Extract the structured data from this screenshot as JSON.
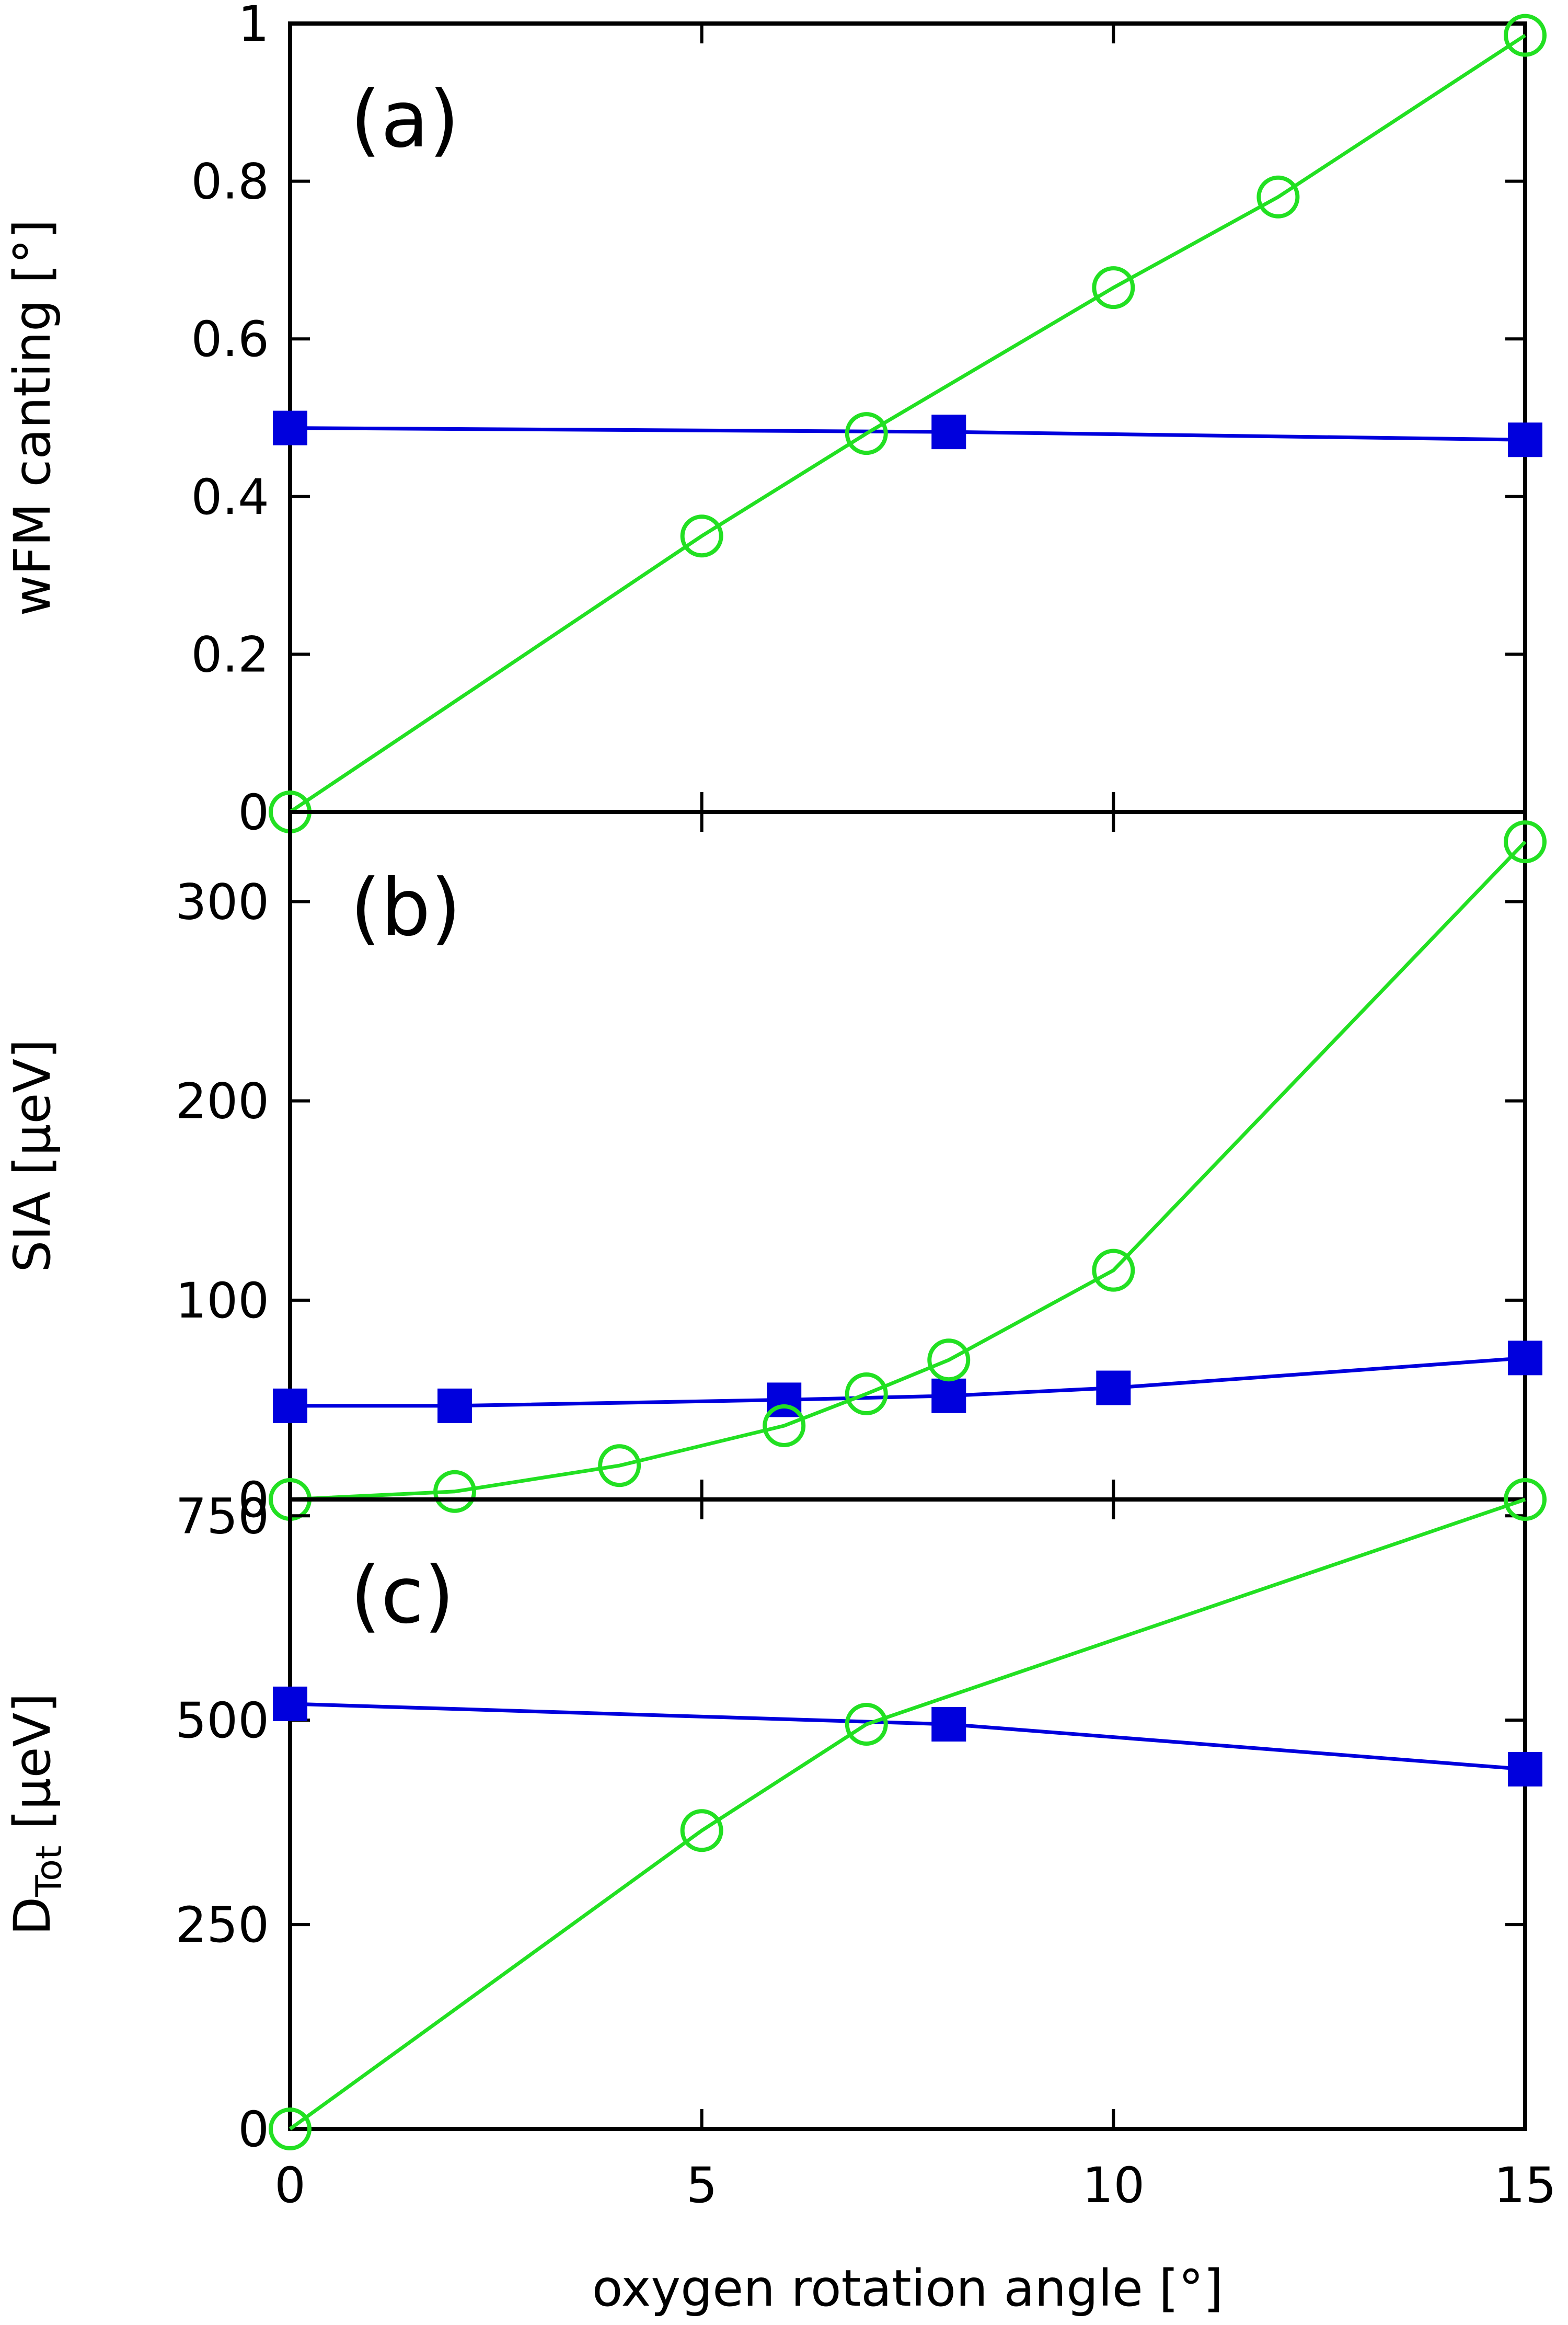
{
  "chart_data": [
    {
      "type": "line",
      "panel_label": "(a)",
      "ylabel": "wFM canting [°]",
      "ylim": [
        0,
        1
      ],
      "yticks": [
        {
          "value": 0,
          "label": "0"
        },
        {
          "value": 0.2,
          "label": "0.2"
        },
        {
          "value": 0.4,
          "label": "0.4"
        },
        {
          "value": 0.6,
          "label": "0.6"
        },
        {
          "value": 0.8,
          "label": "0.8"
        },
        {
          "value": 1,
          "label": "1"
        }
      ],
      "xlim": [
        0,
        15
      ],
      "series": [
        {
          "name": "blue filled squares",
          "color": "#0000dd",
          "marker": "square",
          "x": [
            0,
            8,
            15
          ],
          "y": [
            0.487,
            0.482,
            0.472
          ]
        },
        {
          "name": "green open circles",
          "color": "#22e022",
          "marker": "circle",
          "x": [
            0,
            5,
            7,
            10,
            12,
            15
          ],
          "y": [
            0.0,
            0.35,
            0.48,
            0.665,
            0.78,
            0.985
          ]
        }
      ]
    },
    {
      "type": "line",
      "panel_label": "(b)",
      "ylabel": "SIA [μeV]",
      "ylim": [
        0,
        345
      ],
      "yticks": [
        {
          "value": 0,
          "label": "0"
        },
        {
          "value": 100,
          "label": "100"
        },
        {
          "value": 200,
          "label": "200"
        },
        {
          "value": 300,
          "label": "300"
        }
      ],
      "xlim": [
        0,
        15
      ],
      "series": [
        {
          "name": "blue filled squares",
          "color": "#0000dd",
          "marker": "square",
          "x": [
            0,
            2,
            6,
            8,
            10,
            15
          ],
          "y": [
            47,
            47,
            50,
            52,
            56,
            71
          ]
        },
        {
          "name": "green open circles",
          "color": "#22e022",
          "marker": "circle",
          "x": [
            0,
            2,
            4,
            6,
            7,
            8,
            10,
            15
          ],
          "y": [
            0,
            4,
            17,
            37,
            53,
            70,
            115,
            330
          ]
        }
      ]
    },
    {
      "type": "line",
      "panel_label": "(c)",
      "ylabel_main": "D",
      "ylabel_sub": "Tot",
      "ylabel_unit": "[μeV]",
      "ylim": [
        0,
        770
      ],
      "yticks": [
        {
          "value": 0,
          "label": "0"
        },
        {
          "value": 250,
          "label": "250"
        },
        {
          "value": 500,
          "label": "500"
        },
        {
          "value": 750,
          "label": "750"
        }
      ],
      "xlim": [
        0,
        15
      ],
      "xlabel": "oxygen rotation angle [°]",
      "xticks": [
        {
          "value": 0,
          "label": "0"
        },
        {
          "value": 5,
          "label": "5"
        },
        {
          "value": 10,
          "label": "10"
        },
        {
          "value": 15,
          "label": "15"
        }
      ],
      "series": [
        {
          "name": "blue filled squares",
          "color": "#0000dd",
          "marker": "square",
          "x": [
            0,
            8,
            15
          ],
          "y": [
            520,
            495,
            440
          ]
        },
        {
          "name": "green open circles",
          "color": "#22e022",
          "marker": "circle",
          "x": [
            0,
            5,
            7,
            15
          ],
          "y": [
            0,
            365,
            495,
            770
          ]
        }
      ]
    }
  ]
}
